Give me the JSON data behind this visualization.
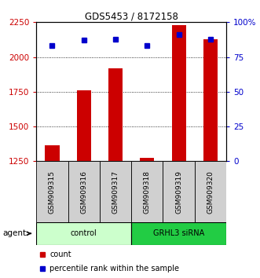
{
  "title": "GDS5453 / 8172158",
  "samples": [
    "GSM909315",
    "GSM909316",
    "GSM909317",
    "GSM909318",
    "GSM909319",
    "GSM909320"
  ],
  "counts": [
    1365,
    1760,
    1920,
    1275,
    2230,
    2130
  ],
  "percentile_ranks": [
    83,
    87,
    88,
    83,
    91,
    88
  ],
  "ylim_left": [
    1250,
    2250
  ],
  "ylim_right": [
    0,
    100
  ],
  "yticks_left": [
    1250,
    1500,
    1750,
    2000,
    2250
  ],
  "yticks_right": [
    0,
    25,
    50,
    75,
    100
  ],
  "ytick_labels_right": [
    "0",
    "25",
    "50",
    "75",
    "100%"
  ],
  "bar_color": "#cc0000",
  "dot_color": "#0000cc",
  "groups": [
    {
      "label": "control",
      "indices": [
        0,
        1,
        2
      ],
      "color": "#ccffcc"
    },
    {
      "label": "GRHL3 siRNA",
      "indices": [
        3,
        4,
        5
      ],
      "color": "#22cc44"
    }
  ],
  "agent_label": "agent",
  "legend_count_label": "count",
  "legend_percentile_label": "percentile rank within the sample",
  "bar_width": 0.45,
  "tick_label_color_left": "#cc0000",
  "tick_label_color_right": "#0000cc",
  "gray_bg": "#d0d0d0"
}
